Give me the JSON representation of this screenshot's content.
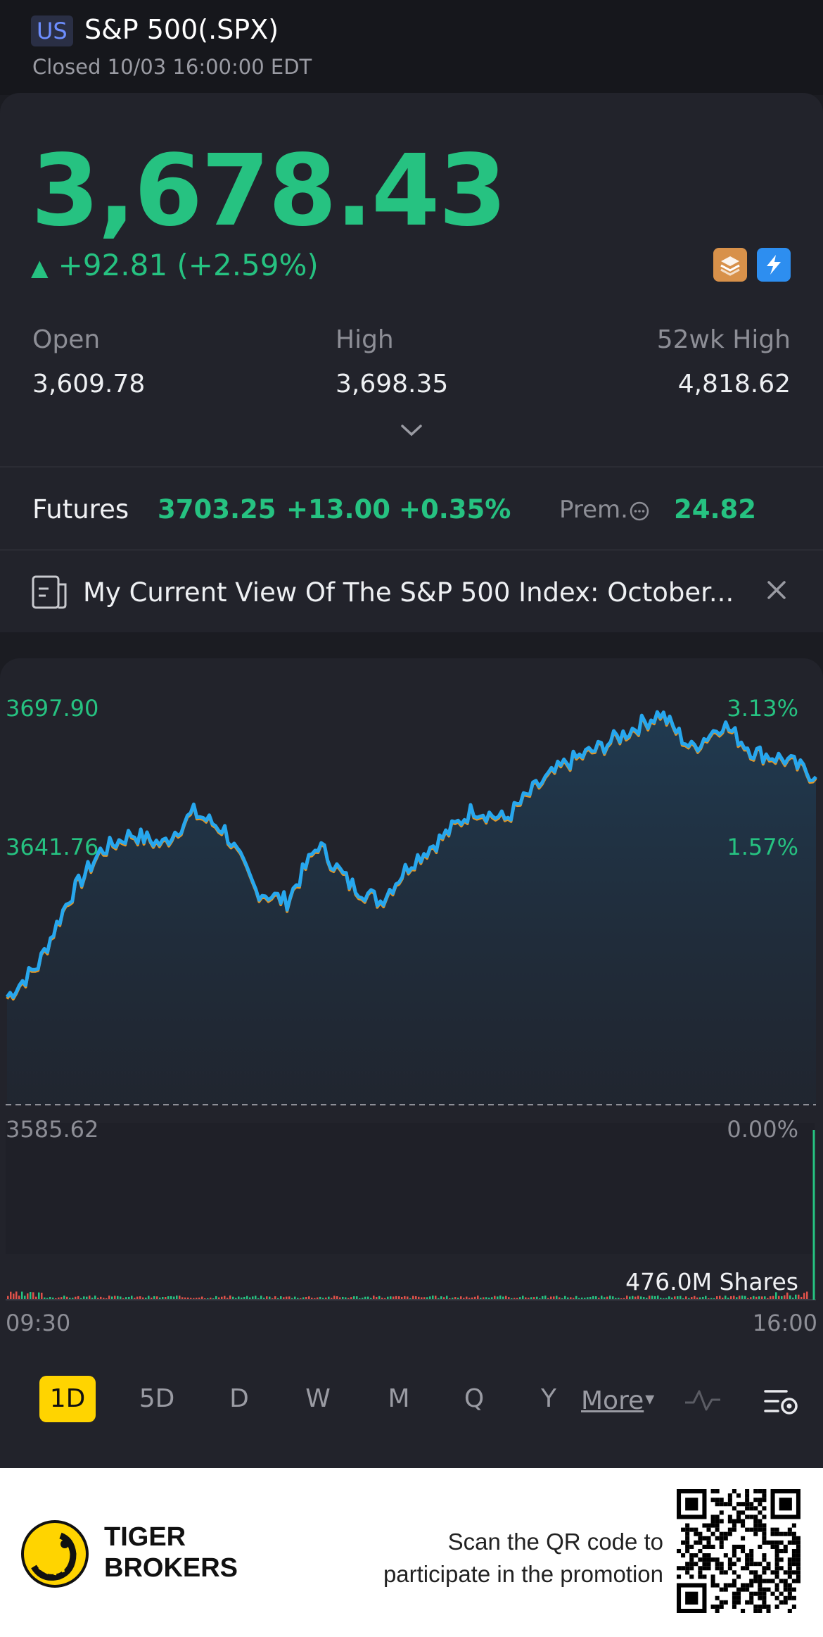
{
  "header": {
    "market": "US",
    "title": "S&P 500(.SPX)",
    "status": "Closed 10/03 16:00:00 EDT"
  },
  "quote": {
    "price": "3,678.43",
    "change": "+92.81 (+2.59%)",
    "direction_glyph": "▲",
    "stats": [
      {
        "label": "Open",
        "value": "3,609.78"
      },
      {
        "label": "High",
        "value": "3,698.35"
      },
      {
        "label": "52wk High",
        "value": "4,818.62"
      }
    ],
    "colors": {
      "up": "#26c281",
      "badge_a": "#d8914a",
      "badge_b": "#2d8ef0"
    }
  },
  "futures": {
    "label": "Futures",
    "price": "3703.25",
    "change": "+13.00",
    "change_pct": "+0.35%",
    "premium_label": "Prem.",
    "premium_value": "24.82"
  },
  "news": {
    "headline": "My Current View Of The S&P 500 Index: October..."
  },
  "chart": {
    "y_left_top": "3697.90",
    "y_left_mid": "3641.76",
    "y_left_base": "3585.62",
    "y_right_top": "3.13%",
    "y_right_mid": "1.57%",
    "y_right_base": "0.00%",
    "volume": "476.0M Shares",
    "time_start": "09:30",
    "time_end": "16:00"
  },
  "chart_data": {
    "type": "line",
    "ylim": [
      3585.62,
      3697.9
    ],
    "xlim": [
      "09:30",
      "16:00"
    ],
    "series": [
      {
        "x": [
          "09:30",
          "09:45",
          "10:00",
          "10:15",
          "10:30",
          "10:45",
          "11:00",
          "11:15",
          "11:30",
          "11:45",
          "12:00",
          "12:15",
          "12:30",
          "12:45",
          "13:00",
          "13:15",
          "13:30",
          "13:45",
          "14:00",
          "14:15",
          "14:30",
          "14:45",
          "15:00",
          "15:15",
          "15:30",
          "15:45",
          "16:00"
        ],
        "values": [
          3616,
          3625,
          3644,
          3657,
          3662,
          3659,
          3668,
          3663,
          3646,
          3643,
          3659,
          3648,
          3643,
          3654,
          3661,
          3669,
          3666,
          3675,
          3682,
          3686,
          3691,
          3696,
          3686,
          3693,
          3685,
          3683,
          3678
        ]
      }
    ],
    "grid": false,
    "baseline": 3585.62
  },
  "tabs": {
    "items": [
      "1D",
      "5D",
      "D",
      "W",
      "M",
      "Q",
      "Y"
    ],
    "more": "More",
    "more_glyph": "▾"
  },
  "footer": {
    "brand_line1": "TIGER",
    "brand_line2": "BROKERS",
    "promo_line1": "Scan the QR code to",
    "promo_line2": "participate in the promotion"
  }
}
